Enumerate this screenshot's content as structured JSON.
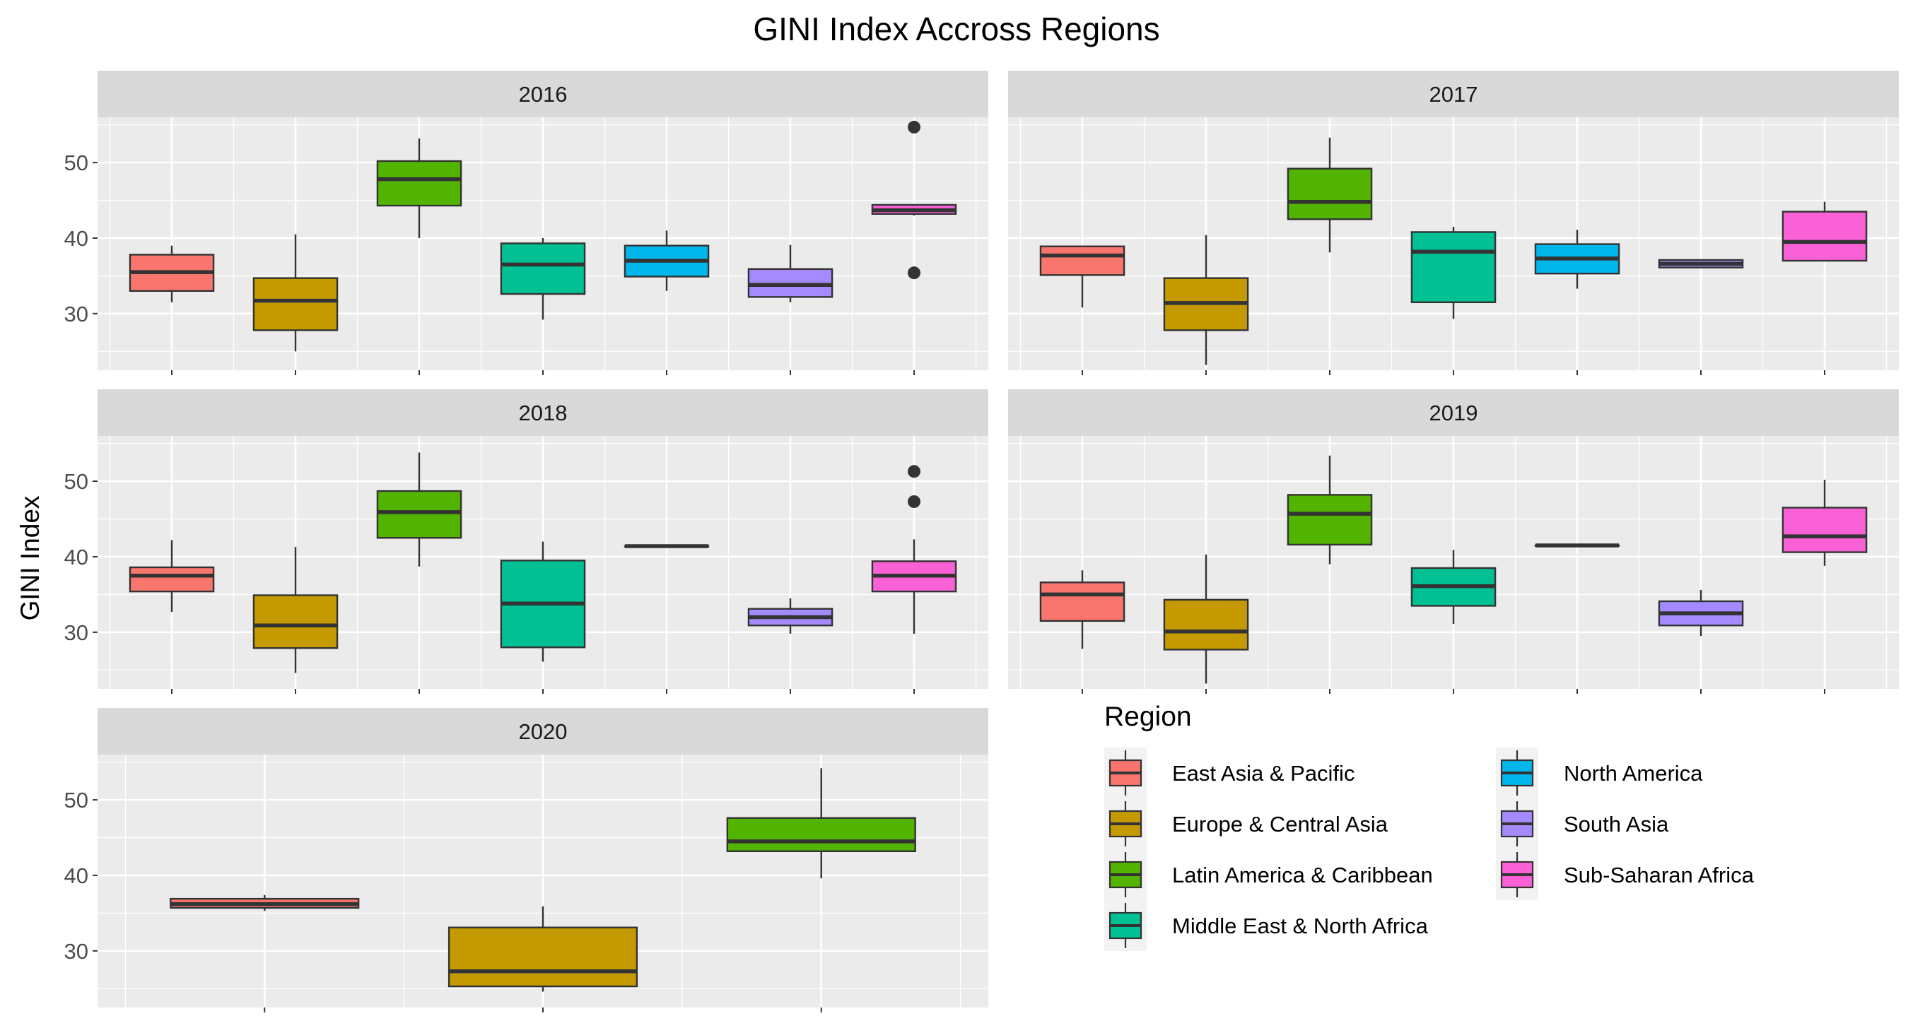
{
  "chart_data": {
    "type": "boxplot",
    "title": "GINI Index Accross Regions",
    "ylabel": "GINI Index",
    "xlabel": "",
    "ylim": [
      22.5,
      56
    ],
    "yticks": [
      30,
      40,
      50
    ],
    "grid": true,
    "legend": {
      "title": "Region",
      "position": "bottom-right",
      "columns": 2,
      "entries": [
        {
          "name": "East Asia & Pacific",
          "color": "#F8766D"
        },
        {
          "name": "Europe & Central Asia",
          "color": "#C49A00"
        },
        {
          "name": "Latin America & Caribbean",
          "color": "#53B400"
        },
        {
          "name": "Middle East & North Africa",
          "color": "#00C094"
        },
        {
          "name": "North America",
          "color": "#00B6EB"
        },
        {
          "name": "South Asia",
          "color": "#A58AFF"
        },
        {
          "name": "Sub-Saharan Africa",
          "color": "#FB61D7"
        }
      ]
    },
    "panels": [
      {
        "label": "2016",
        "boxes": [
          {
            "region": "East Asia & Pacific",
            "whisker_low": 31.5,
            "q1": 33.0,
            "median": 35.5,
            "q3": 37.8,
            "whisker_high": 39.0,
            "outliers": []
          },
          {
            "region": "Europe & Central Asia",
            "whisker_low": 25.0,
            "q1": 27.8,
            "median": 31.7,
            "q3": 34.7,
            "whisker_high": 40.5,
            "outliers": []
          },
          {
            "region": "Latin America & Caribbean",
            "whisker_low": 40.0,
            "q1": 44.3,
            "median": 47.8,
            "q3": 50.2,
            "whisker_high": 53.2,
            "outliers": []
          },
          {
            "region": "Middle East & North Africa",
            "whisker_low": 29.2,
            "q1": 32.6,
            "median": 36.5,
            "q3": 39.3,
            "whisker_high": 40.0,
            "outliers": []
          },
          {
            "region": "North America",
            "whisker_low": 33.0,
            "q1": 34.9,
            "median": 37.0,
            "q3": 39.0,
            "whisker_high": 41.0,
            "outliers": []
          },
          {
            "region": "South Asia",
            "whisker_low": 31.5,
            "q1": 32.2,
            "median": 33.8,
            "q3": 35.9,
            "whisker_high": 39.1,
            "outliers": []
          },
          {
            "region": "Sub-Saharan Africa",
            "whisker_low": 43.0,
            "q1": 43.2,
            "median": 43.7,
            "q3": 44.4,
            "whisker_high": 44.5,
            "outliers": [
              54.7,
              35.4
            ]
          }
        ]
      },
      {
        "label": "2017",
        "boxes": [
          {
            "region": "East Asia & Pacific",
            "whisker_low": 30.8,
            "q1": 35.1,
            "median": 37.7,
            "q3": 38.9,
            "whisker_high": 38.9,
            "outliers": []
          },
          {
            "region": "Europe & Central Asia",
            "whisker_low": 23.2,
            "q1": 27.8,
            "median": 31.4,
            "q3": 34.7,
            "whisker_high": 40.4,
            "outliers": []
          },
          {
            "region": "Latin America & Caribbean",
            "whisker_low": 38.1,
            "q1": 42.5,
            "median": 44.8,
            "q3": 49.2,
            "whisker_high": 53.3,
            "outliers": []
          },
          {
            "region": "Middle East & North Africa",
            "whisker_low": 29.3,
            "q1": 31.5,
            "median": 38.2,
            "q3": 40.8,
            "whisker_high": 41.5,
            "outliers": []
          },
          {
            "region": "North America",
            "whisker_low": 33.3,
            "q1": 35.3,
            "median": 37.3,
            "q3": 39.2,
            "whisker_high": 41.1,
            "outliers": []
          },
          {
            "region": "South Asia",
            "whisker_low": 36.1,
            "q1": 36.1,
            "median": 36.6,
            "q3": 37.1,
            "whisker_high": 37.1,
            "outliers": []
          },
          {
            "region": "Sub-Saharan Africa",
            "whisker_low": 37.0,
            "q1": 37.0,
            "median": 39.5,
            "q3": 43.5,
            "whisker_high": 44.8,
            "outliers": []
          }
        ]
      },
      {
        "label": "2018",
        "boxes": [
          {
            "region": "East Asia & Pacific",
            "whisker_low": 32.7,
            "q1": 35.4,
            "median": 37.5,
            "q3": 38.6,
            "whisker_high": 42.2,
            "outliers": []
          },
          {
            "region": "Europe & Central Asia",
            "whisker_low": 24.6,
            "q1": 27.9,
            "median": 30.9,
            "q3": 34.9,
            "whisker_high": 41.3,
            "outliers": []
          },
          {
            "region": "Latin America & Caribbean",
            "whisker_low": 38.7,
            "q1": 42.5,
            "median": 45.9,
            "q3": 48.7,
            "whisker_high": 53.8,
            "outliers": []
          },
          {
            "region": "Middle East & North Africa",
            "whisker_low": 26.1,
            "q1": 28.0,
            "median": 33.8,
            "q3": 39.5,
            "whisker_high": 42.0,
            "outliers": []
          },
          {
            "region": "North America",
            "whisker_low": 41.4,
            "q1": 41.4,
            "median": 41.4,
            "q3": 41.4,
            "whisker_high": 41.4,
            "outliers": []
          },
          {
            "region": "South Asia",
            "whisker_low": 29.8,
            "q1": 30.9,
            "median": 32.0,
            "q3": 33.1,
            "whisker_high": 34.5,
            "outliers": []
          },
          {
            "region": "Sub-Saharan Africa",
            "whisker_low": 29.8,
            "q1": 35.4,
            "median": 37.5,
            "q3": 39.4,
            "whisker_high": 42.3,
            "outliers": [
              51.3,
              47.3
            ]
          }
        ]
      },
      {
        "label": "2019",
        "boxes": [
          {
            "region": "East Asia & Pacific",
            "whisker_low": 27.8,
            "q1": 31.5,
            "median": 35.0,
            "q3": 36.6,
            "whisker_high": 38.2,
            "outliers": []
          },
          {
            "region": "Europe & Central Asia",
            "whisker_low": 23.2,
            "q1": 27.7,
            "median": 30.1,
            "q3": 34.3,
            "whisker_high": 40.3,
            "outliers": []
          },
          {
            "region": "Latin America & Caribbean",
            "whisker_low": 39.0,
            "q1": 41.6,
            "median": 45.7,
            "q3": 48.2,
            "whisker_high": 53.4,
            "outliers": []
          },
          {
            "region": "Middle East & North Africa",
            "whisker_low": 31.1,
            "q1": 33.5,
            "median": 36.1,
            "q3": 38.5,
            "whisker_high": 40.9,
            "outliers": []
          },
          {
            "region": "North America",
            "whisker_low": 41.5,
            "q1": 41.5,
            "median": 41.5,
            "q3": 41.5,
            "whisker_high": 41.5,
            "outliers": []
          },
          {
            "region": "South Asia",
            "whisker_low": 29.5,
            "q1": 30.9,
            "median": 32.5,
            "q3": 34.1,
            "whisker_high": 35.6,
            "outliers": []
          },
          {
            "region": "Sub-Saharan Africa",
            "whisker_low": 38.8,
            "q1": 40.6,
            "median": 42.7,
            "q3": 46.5,
            "whisker_high": 50.2,
            "outliers": []
          }
        ]
      },
      {
        "label": "2020",
        "boxes": [
          {
            "region": "East Asia & Pacific",
            "whisker_low": 35.3,
            "q1": 35.7,
            "median": 36.2,
            "q3": 36.9,
            "whisker_high": 37.4,
            "outliers": []
          },
          {
            "region": "Europe & Central Asia",
            "whisker_low": 24.6,
            "q1": 25.3,
            "median": 27.3,
            "q3": 33.1,
            "whisker_high": 35.9,
            "outliers": []
          },
          {
            "region": "Latin America & Caribbean",
            "whisker_low": 39.6,
            "q1": 43.2,
            "median": 44.5,
            "q3": 47.6,
            "whisker_high": 54.2,
            "outliers": []
          }
        ]
      }
    ]
  }
}
